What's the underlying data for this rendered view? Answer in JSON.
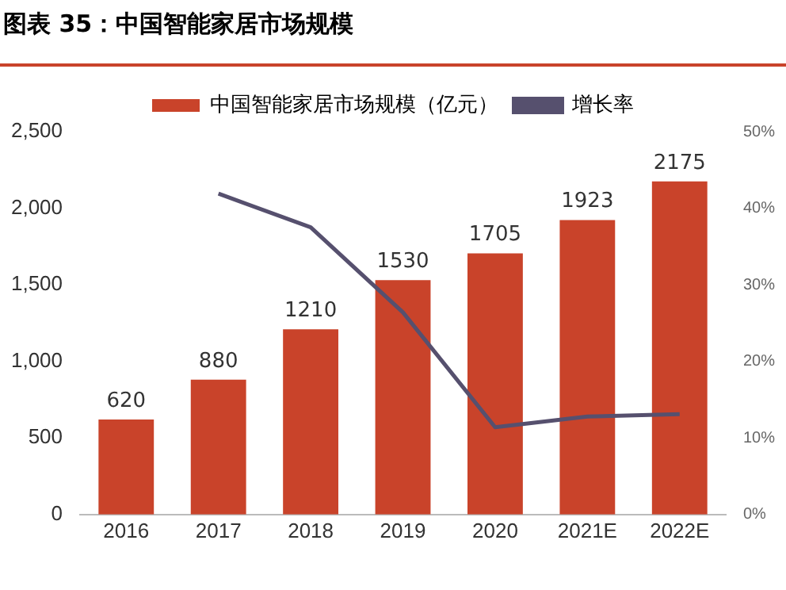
{
  "chart_data": {
    "type": "bar",
    "title": "图表 35：中国智能家居市场规模",
    "categories": [
      "2016",
      "2017",
      "2018",
      "2019",
      "2020",
      "2021E",
      "2022E"
    ],
    "series": [
      {
        "name": "中国智能家居市场规模（亿元）",
        "color": "#c9432a",
        "values": [
          620,
          880,
          1210,
          1530,
          1705,
          1923,
          2175
        ],
        "value_labels": [
          "620",
          "880",
          "1210",
          "1530",
          "1705",
          "1923",
          "2175"
        ]
      },
      {
        "name": "增长率",
        "type": "line",
        "axis": "y2",
        "color": "#56506e",
        "values": [
          null,
          41.9,
          37.5,
          26.4,
          11.4,
          12.8,
          13.1
        ]
      }
    ],
    "ylim": [
      0,
      2500
    ],
    "yticks": [
      {
        "value": 0,
        "label": "0"
      },
      {
        "value": 500,
        "label": "500"
      },
      {
        "value": 1000,
        "label": "1,000"
      },
      {
        "value": 1500,
        "label": "1,500"
      },
      {
        "value": 2000,
        "label": "2,000"
      },
      {
        "value": 2500,
        "label": "2,500"
      }
    ],
    "y2lim": [
      0,
      50
    ],
    "y2ticks": [
      {
        "value": 0,
        "label": "0%"
      },
      {
        "value": 10,
        "label": "10%"
      },
      {
        "value": 20,
        "label": "20%"
      },
      {
        "value": 30,
        "label": "30%"
      },
      {
        "value": 40,
        "label": "40%"
      },
      {
        "value": 50,
        "label": "50%"
      }
    ],
    "legend": "top",
    "grid": false,
    "marker": "none"
  }
}
